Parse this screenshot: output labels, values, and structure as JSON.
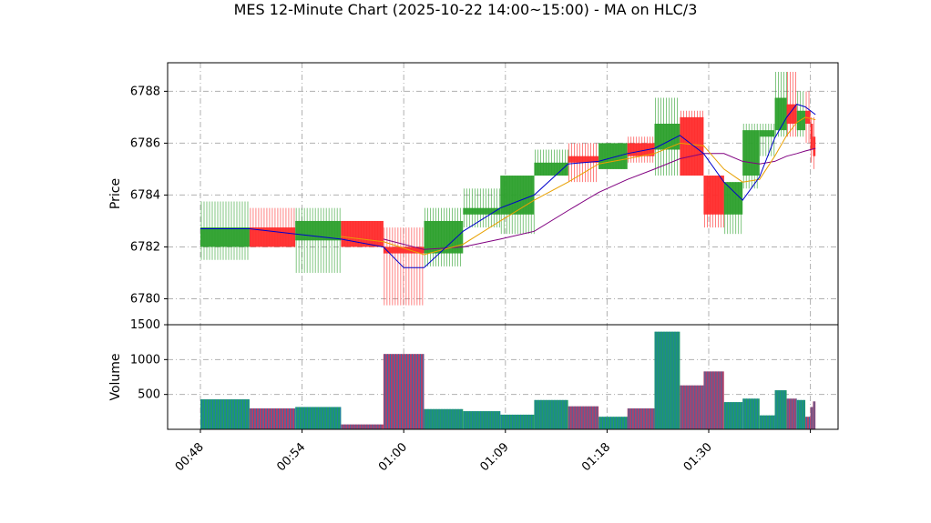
{
  "chart_data": {
    "type": "candlestick",
    "title": "MES 12-Minute Chart (2025-10-22 14:00~15:00) - MA on HLC/3",
    "price_panel": {
      "ylabel": "Price",
      "ylim": [
        6779.0,
        6789.1
      ],
      "yticks": [
        6780,
        6782,
        6784,
        6786,
        6788
      ]
    },
    "volume_panel": {
      "ylabel": "Volume",
      "ylim": [
        0,
        1500
      ],
      "yticks": [
        500,
        1000,
        1500
      ]
    },
    "xlim": [
      0,
      60
    ],
    "xticks": [
      {
        "t": 0,
        "label": "00:48"
      },
      {
        "t": 6,
        "label": "00:54"
      },
      {
        "t": 12,
        "label": "01:00"
      },
      {
        "t": 18,
        "label": "01:09"
      },
      {
        "t": 24,
        "label": "01:18"
      },
      {
        "t": 30,
        "label": "01:30"
      },
      {
        "t": 36,
        "label": ""
      }
    ],
    "grid": true,
    "colors": {
      "up": "#2ca02c",
      "down": "#ff2b2b",
      "volume": "#1f77b4",
      "ma_fast": "#0000cc",
      "ma_mid": "#e8a000",
      "ma_slow": "#800080"
    },
    "candles": [
      {
        "t0": 0.0,
        "t1": 2.9,
        "open": 6782.0,
        "high": 6783.75,
        "low": 6781.5,
        "close": 6782.75,
        "volume": 430
      },
      {
        "t0": 2.9,
        "t1": 5.6,
        "open": 6782.75,
        "high": 6783.5,
        "low": 6782.0,
        "close": 6782.0,
        "volume": 300
      },
      {
        "t0": 5.6,
        "t1": 8.3,
        "open": 6782.25,
        "high": 6783.5,
        "low": 6781.0,
        "close": 6783.0,
        "volume": 320
      },
      {
        "t0": 8.3,
        "t1": 10.8,
        "open": 6783.0,
        "high": 6783.0,
        "low": 6782.0,
        "close": 6782.0,
        "volume": 70
      },
      {
        "t0": 10.8,
        "t1": 13.2,
        "open": 6782.0,
        "high": 6782.75,
        "low": 6779.75,
        "close": 6781.75,
        "volume": 1080
      },
      {
        "t0": 13.2,
        "t1": 15.5,
        "open": 6781.75,
        "high": 6783.5,
        "low": 6781.25,
        "close": 6783.0,
        "volume": 290
      },
      {
        "t0": 15.5,
        "t1": 17.7,
        "open": 6783.25,
        "high": 6784.25,
        "low": 6782.75,
        "close": 6783.5,
        "volume": 260
      },
      {
        "t0": 17.7,
        "t1": 19.7,
        "open": 6783.25,
        "high": 6784.75,
        "low": 6782.5,
        "close": 6784.75,
        "volume": 210
      },
      {
        "t0": 19.7,
        "t1": 21.7,
        "open": 6784.75,
        "high": 6785.75,
        "low": 6784.75,
        "close": 6785.25,
        "volume": 420
      },
      {
        "t0": 21.7,
        "t1": 23.5,
        "open": 6785.5,
        "high": 6786.0,
        "low": 6784.5,
        "close": 6785.25,
        "volume": 330
      },
      {
        "t0": 23.5,
        "t1": 25.2,
        "open": 6785.0,
        "high": 6786.0,
        "low": 6785.0,
        "close": 6786.0,
        "volume": 180
      },
      {
        "t0": 25.2,
        "t1": 26.8,
        "open": 6786.0,
        "high": 6786.25,
        "low": 6785.25,
        "close": 6785.5,
        "volume": 300
      },
      {
        "t0": 26.8,
        "t1": 28.3,
        "open": 6785.75,
        "high": 6787.75,
        "low": 6784.75,
        "close": 6786.75,
        "volume": 1400
      },
      {
        "t0": 28.3,
        "t1": 29.7,
        "open": 6787.0,
        "high": 6787.25,
        "low": 6784.75,
        "close": 6784.75,
        "volume": 630
      },
      {
        "t0": 29.7,
        "t1": 30.9,
        "open": 6784.75,
        "high": 6784.75,
        "low": 6782.75,
        "close": 6783.25,
        "volume": 830
      },
      {
        "t0": 30.9,
        "t1": 32.0,
        "open": 6783.25,
        "high": 6784.5,
        "low": 6782.5,
        "close": 6784.5,
        "volume": 390
      },
      {
        "t0": 32.0,
        "t1": 33.0,
        "open": 6784.75,
        "high": 6786.75,
        "low": 6784.25,
        "close": 6786.5,
        "volume": 440
      },
      {
        "t0": 33.0,
        "t1": 33.9,
        "open": 6786.25,
        "high": 6786.75,
        "low": 6785.5,
        "close": 6786.5,
        "volume": 200
      },
      {
        "t0": 33.9,
        "t1": 34.6,
        "open": 6786.5,
        "high": 6788.75,
        "low": 6786.25,
        "close": 6787.75,
        "volume": 560
      },
      {
        "t0": 34.6,
        "t1": 35.2,
        "open": 6787.5,
        "high": 6788.75,
        "low": 6786.25,
        "close": 6786.75,
        "volume": 440
      },
      {
        "t0": 35.2,
        "t1": 35.7,
        "open": 6786.5,
        "high": 6788.0,
        "low": 6786.25,
        "close": 6787.25,
        "volume": 420
      },
      {
        "t0": 35.7,
        "t1": 36.0,
        "open": 6787.25,
        "high": 6788.0,
        "low": 6786.0,
        "close": 6786.75,
        "volume": 180
      },
      {
        "t0": 36.0,
        "t1": 36.15,
        "open": 6786.75,
        "high": 6787.0,
        "low": 6785.25,
        "close": 6785.75,
        "volume": 320
      },
      {
        "t0": 36.15,
        "t1": 36.3,
        "open": 6786.25,
        "high": 6787.0,
        "low": 6785.0,
        "close": 6785.5,
        "volume": 400
      }
    ],
    "ma_fast": [
      [
        0,
        6782.7
      ],
      [
        2.9,
        6782.7
      ],
      [
        5.6,
        6782.5
      ],
      [
        8.3,
        6782.3
      ],
      [
        10.8,
        6782.0
      ],
      [
        12,
        6781.2
      ],
      [
        13.2,
        6781.2
      ],
      [
        15.5,
        6782.6
      ],
      [
        17.7,
        6783.5
      ],
      [
        19.7,
        6784.0
      ],
      [
        21.7,
        6785.2
      ],
      [
        23.5,
        6785.3
      ],
      [
        25.2,
        6785.6
      ],
      [
        26.8,
        6785.8
      ],
      [
        28.3,
        6786.3
      ],
      [
        29.7,
        6785.6
      ],
      [
        30.9,
        6784.5
      ],
      [
        32.0,
        6783.8
      ],
      [
        33.0,
        6784.7
      ],
      [
        33.9,
        6786.2
      ],
      [
        34.6,
        6787.0
      ],
      [
        35.2,
        6787.5
      ],
      [
        35.7,
        6787.4
      ],
      [
        36.3,
        6787.1
      ]
    ],
    "ma_mid": [
      [
        8.3,
        6782.4
      ],
      [
        10.8,
        6782.2
      ],
      [
        13.2,
        6781.7
      ],
      [
        15.5,
        6782.1
      ],
      [
        17.7,
        6783.0
      ],
      [
        19.7,
        6783.8
      ],
      [
        21.7,
        6784.5
      ],
      [
        23.5,
        6785.2
      ],
      [
        25.2,
        6785.4
      ],
      [
        26.8,
        6785.6
      ],
      [
        28.3,
        6786.0
      ],
      [
        29.7,
        6785.9
      ],
      [
        30.9,
        6785.0
      ],
      [
        32.0,
        6784.5
      ],
      [
        33.0,
        6784.6
      ],
      [
        33.9,
        6785.5
      ],
      [
        34.6,
        6786.3
      ],
      [
        35.2,
        6786.8
      ],
      [
        35.7,
        6787.0
      ],
      [
        36.3,
        6786.9
      ]
    ],
    "ma_slow": [
      [
        10.8,
        6782.3
      ],
      [
        13.2,
        6781.9
      ],
      [
        15.5,
        6782.0
      ],
      [
        17.7,
        6782.3
      ],
      [
        19.7,
        6782.6
      ],
      [
        21.7,
        6783.4
      ],
      [
        23.5,
        6784.1
      ],
      [
        25.2,
        6784.6
      ],
      [
        26.8,
        6785.0
      ],
      [
        28.3,
        6785.4
      ],
      [
        29.7,
        6785.6
      ],
      [
        30.9,
        6785.6
      ],
      [
        32.0,
        6785.3
      ],
      [
        33.0,
        6785.2
      ],
      [
        33.9,
        6785.3
      ],
      [
        34.6,
        6785.5
      ],
      [
        35.2,
        6785.6
      ],
      [
        35.7,
        6785.7
      ],
      [
        36.3,
        6785.8
      ]
    ]
  }
}
